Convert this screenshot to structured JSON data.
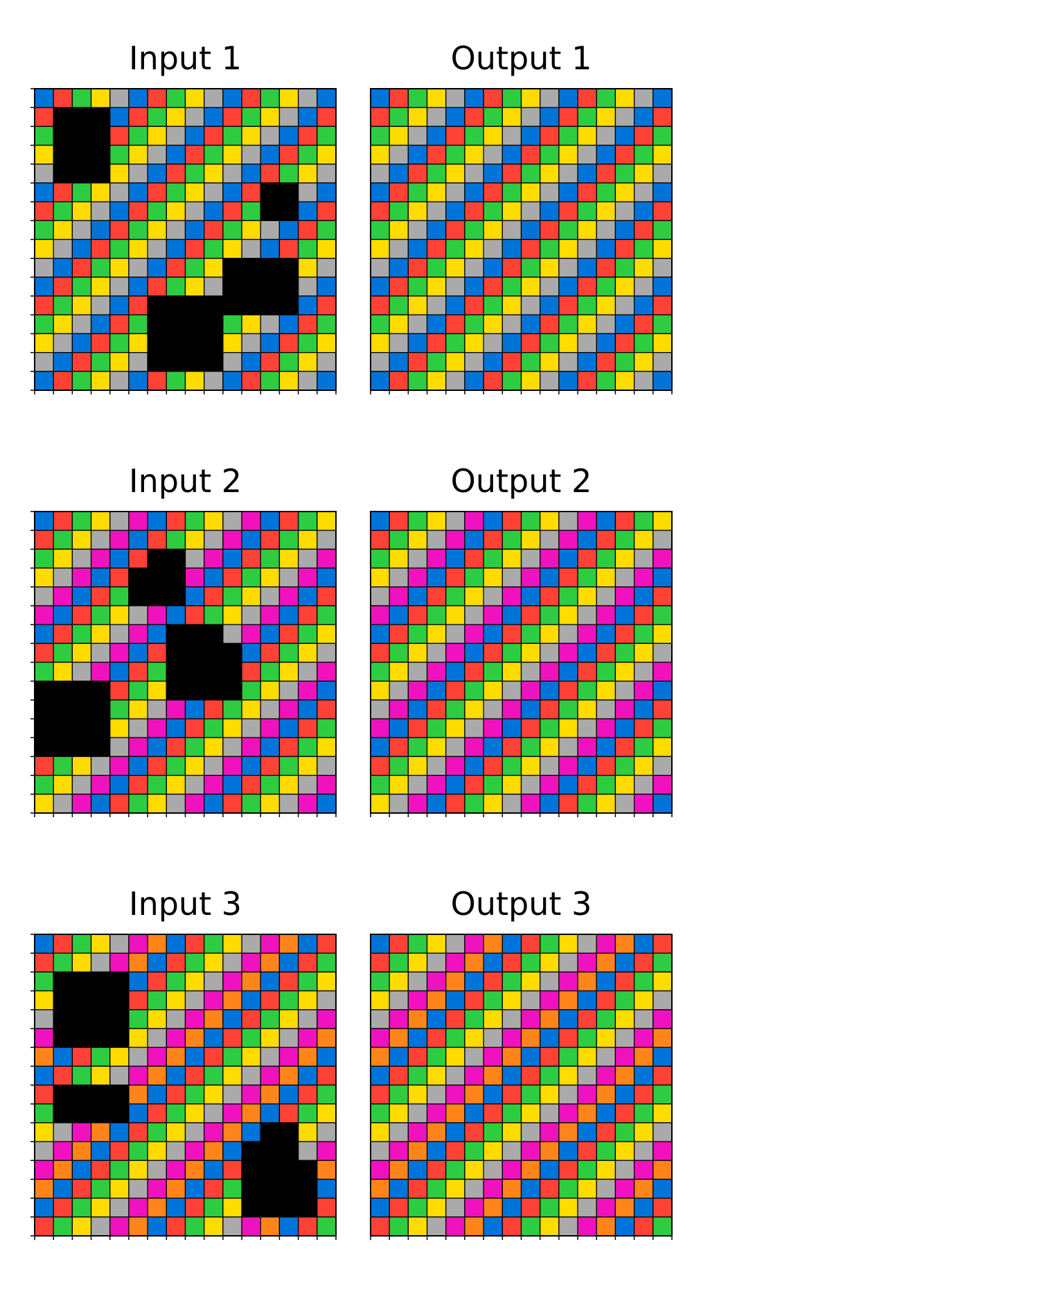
{
  "palette": {
    "0": "#000000",
    "1": "#0074D9",
    "2": "#FF4136",
    "3": "#2ECC40",
    "4": "#FFDC00",
    "5": "#AAAAAA",
    "6": "#F012BE",
    "7": "#FF851B"
  },
  "pairs": [
    {
      "input_title": "Input 1",
      "output_title": "Output 1",
      "cycle": [
        1,
        2,
        3,
        4,
        5
      ],
      "input": [
        [
          1,
          2,
          3,
          4,
          5,
          1,
          2,
          3,
          4,
          5,
          1,
          2,
          3,
          4,
          5,
          1
        ],
        [
          2,
          0,
          0,
          0,
          1,
          2,
          3,
          4,
          5,
          1,
          2,
          3,
          4,
          5,
          1,
          2
        ],
        [
          3,
          0,
          0,
          0,
          2,
          3,
          4,
          5,
          1,
          2,
          3,
          4,
          5,
          1,
          2,
          3
        ],
        [
          4,
          0,
          0,
          0,
          3,
          4,
          5,
          1,
          2,
          3,
          4,
          5,
          1,
          2,
          3,
          4
        ],
        [
          5,
          0,
          0,
          0,
          4,
          5,
          1,
          2,
          3,
          4,
          5,
          1,
          2,
          3,
          4,
          5
        ],
        [
          1,
          2,
          3,
          4,
          5,
          1,
          2,
          3,
          4,
          5,
          1,
          2,
          0,
          0,
          5,
          1
        ],
        [
          2,
          3,
          4,
          5,
          1,
          2,
          3,
          4,
          5,
          1,
          2,
          3,
          0,
          0,
          1,
          2
        ],
        [
          3,
          4,
          5,
          1,
          2,
          3,
          4,
          5,
          1,
          2,
          3,
          4,
          5,
          1,
          2,
          3
        ],
        [
          4,
          5,
          1,
          2,
          3,
          4,
          5,
          1,
          2,
          3,
          4,
          5,
          1,
          2,
          3,
          4
        ],
        [
          5,
          1,
          2,
          3,
          4,
          5,
          1,
          2,
          3,
          4,
          0,
          0,
          0,
          0,
          4,
          5
        ],
        [
          1,
          2,
          3,
          4,
          5,
          1,
          2,
          3,
          4,
          5,
          0,
          0,
          0,
          0,
          5,
          1
        ],
        [
          2,
          3,
          4,
          5,
          1,
          2,
          0,
          0,
          0,
          0,
          0,
          0,
          0,
          0,
          1,
          2
        ],
        [
          3,
          4,
          5,
          1,
          2,
          3,
          0,
          0,
          0,
          0,
          3,
          4,
          5,
          1,
          2,
          3
        ],
        [
          4,
          5,
          1,
          2,
          3,
          4,
          0,
          0,
          0,
          0,
          4,
          5,
          1,
          2,
          3,
          4
        ],
        [
          5,
          1,
          2,
          3,
          4,
          5,
          0,
          0,
          0,
          0,
          5,
          1,
          2,
          3,
          4,
          5
        ],
        [
          1,
          2,
          3,
          4,
          5,
          1,
          2,
          3,
          4,
          5,
          1,
          2,
          3,
          4,
          5,
          1
        ]
      ]
    },
    {
      "input_title": "Input 2",
      "output_title": "Output 2",
      "cycle": [
        1,
        2,
        3,
        4,
        5,
        6
      ],
      "input": [
        [
          1,
          2,
          3,
          4,
          5,
          6,
          1,
          2,
          3,
          4,
          5,
          6,
          1,
          2,
          3,
          4
        ],
        [
          2,
          3,
          4,
          5,
          6,
          1,
          2,
          3,
          4,
          5,
          6,
          1,
          2,
          3,
          4,
          5
        ],
        [
          3,
          4,
          5,
          6,
          1,
          2,
          0,
          0,
          5,
          6,
          1,
          2,
          3,
          4,
          5,
          6
        ],
        [
          4,
          5,
          6,
          1,
          2,
          0,
          0,
          0,
          6,
          1,
          2,
          3,
          4,
          5,
          6,
          1
        ],
        [
          5,
          6,
          1,
          2,
          3,
          0,
          0,
          0,
          1,
          2,
          3,
          4,
          5,
          6,
          1,
          2
        ],
        [
          6,
          1,
          2,
          3,
          4,
          5,
          6,
          1,
          2,
          3,
          4,
          5,
          6,
          1,
          2,
          3
        ],
        [
          1,
          2,
          3,
          4,
          5,
          6,
          1,
          0,
          0,
          0,
          5,
          6,
          1,
          2,
          3,
          4
        ],
        [
          2,
          3,
          4,
          5,
          6,
          1,
          2,
          0,
          0,
          0,
          0,
          1,
          2,
          3,
          4,
          5
        ],
        [
          3,
          4,
          5,
          6,
          1,
          2,
          3,
          0,
          0,
          0,
          0,
          2,
          3,
          4,
          5,
          6
        ],
        [
          0,
          0,
          0,
          0,
          2,
          3,
          4,
          0,
          0,
          0,
          0,
          3,
          4,
          5,
          6,
          1
        ],
        [
          0,
          0,
          0,
          0,
          3,
          4,
          5,
          6,
          1,
          2,
          3,
          4,
          5,
          6,
          1,
          2
        ],
        [
          0,
          0,
          0,
          0,
          4,
          5,
          6,
          1,
          2,
          3,
          4,
          5,
          6,
          1,
          2,
          3
        ],
        [
          0,
          0,
          0,
          0,
          5,
          6,
          1,
          2,
          3,
          4,
          5,
          6,
          1,
          2,
          3,
          4
        ],
        [
          2,
          3,
          4,
          5,
          6,
          1,
          2,
          3,
          4,
          5,
          6,
          1,
          2,
          3,
          4,
          5
        ],
        [
          3,
          4,
          5,
          6,
          1,
          2,
          3,
          4,
          5,
          6,
          1,
          2,
          3,
          4,
          5,
          6
        ],
        [
          4,
          5,
          6,
          1,
          2,
          3,
          4,
          5,
          6,
          1,
          2,
          3,
          4,
          5,
          6,
          1
        ]
      ]
    },
    {
      "input_title": "Input 3",
      "output_title": "Output 3",
      "cycle": [
        1,
        2,
        3,
        4,
        5,
        6,
        7
      ],
      "input": [
        [
          1,
          2,
          3,
          4,
          5,
          6,
          7,
          1,
          2,
          3,
          4,
          5,
          6,
          7,
          1,
          2
        ],
        [
          2,
          3,
          4,
          5,
          6,
          7,
          1,
          2,
          3,
          4,
          5,
          6,
          7,
          1,
          2,
          3
        ],
        [
          3,
          0,
          0,
          0,
          0,
          1,
          2,
          3,
          4,
          5,
          6,
          7,
          1,
          2,
          3,
          4
        ],
        [
          4,
          0,
          0,
          0,
          0,
          2,
          3,
          4,
          5,
          6,
          7,
          1,
          2,
          3,
          4,
          5
        ],
        [
          5,
          0,
          0,
          0,
          0,
          3,
          4,
          5,
          6,
          7,
          1,
          2,
          3,
          4,
          5,
          6
        ],
        [
          6,
          0,
          0,
          0,
          0,
          4,
          5,
          6,
          7,
          1,
          2,
          3,
          4,
          5,
          6,
          7
        ],
        [
          7,
          1,
          2,
          3,
          4,
          5,
          6,
          7,
          1,
          2,
          3,
          4,
          5,
          6,
          7,
          1
        ],
        [
          1,
          2,
          3,
          4,
          5,
          6,
          7,
          1,
          2,
          3,
          4,
          5,
          6,
          7,
          1,
          2
        ],
        [
          2,
          0,
          0,
          0,
          0,
          7,
          1,
          2,
          3,
          4,
          5,
          6,
          7,
          1,
          2,
          3
        ],
        [
          3,
          0,
          0,
          0,
          0,
          1,
          2,
          3,
          4,
          5,
          6,
          7,
          1,
          2,
          3,
          4
        ],
        [
          4,
          5,
          6,
          7,
          1,
          2,
          3,
          4,
          5,
          6,
          7,
          1,
          0,
          0,
          4,
          5
        ],
        [
          5,
          6,
          7,
          1,
          2,
          3,
          4,
          5,
          6,
          7,
          1,
          0,
          0,
          0,
          5,
          6
        ],
        [
          6,
          7,
          1,
          2,
          3,
          4,
          5,
          6,
          7,
          1,
          2,
          0,
          0,
          0,
          0,
          7
        ],
        [
          7,
          1,
          2,
          3,
          4,
          5,
          6,
          7,
          1,
          2,
          3,
          0,
          0,
          0,
          0,
          1
        ],
        [
          1,
          2,
          3,
          4,
          5,
          6,
          7,
          1,
          2,
          3,
          4,
          0,
          0,
          0,
          0,
          2
        ],
        [
          2,
          3,
          4,
          5,
          6,
          7,
          1,
          2,
          3,
          4,
          5,
          6,
          7,
          1,
          2,
          3
        ]
      ]
    }
  ]
}
